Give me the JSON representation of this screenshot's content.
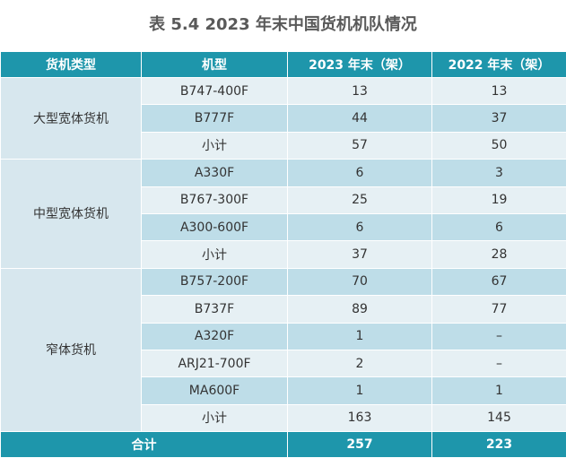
{
  "title": "表 5.4  2023 年末中国货机机队情况",
  "table": {
    "header": [
      "货机类型",
      "机型",
      "2023 年末（架）",
      "2022 年末（架）"
    ],
    "groups": [
      {
        "name": "大型宽体货机",
        "rows": [
          [
            "B747-400F",
            13,
            13
          ],
          [
            "B777F",
            44,
            37
          ],
          [
            "小计",
            57,
            50
          ]
        ]
      },
      {
        "name": "中型宽体货机",
        "rows": [
          [
            "A330F",
            6,
            3
          ],
          [
            "B767-300F",
            25,
            19
          ],
          [
            "A300-600F",
            6,
            6
          ],
          [
            "小计",
            37,
            28
          ]
        ]
      },
      {
        "name": "窄体货机",
        "rows": [
          [
            "B757-200F",
            70,
            67
          ],
          [
            "B737F",
            89,
            77
          ],
          [
            "A320F",
            1,
            "–"
          ],
          [
            "ARJ21-700F",
            2,
            "–"
          ],
          [
            "MA600F",
            1,
            1
          ],
          [
            "小计",
            163,
            145
          ]
        ]
      }
    ],
    "total": [
      "合计",
      257,
      223
    ]
  }
}
